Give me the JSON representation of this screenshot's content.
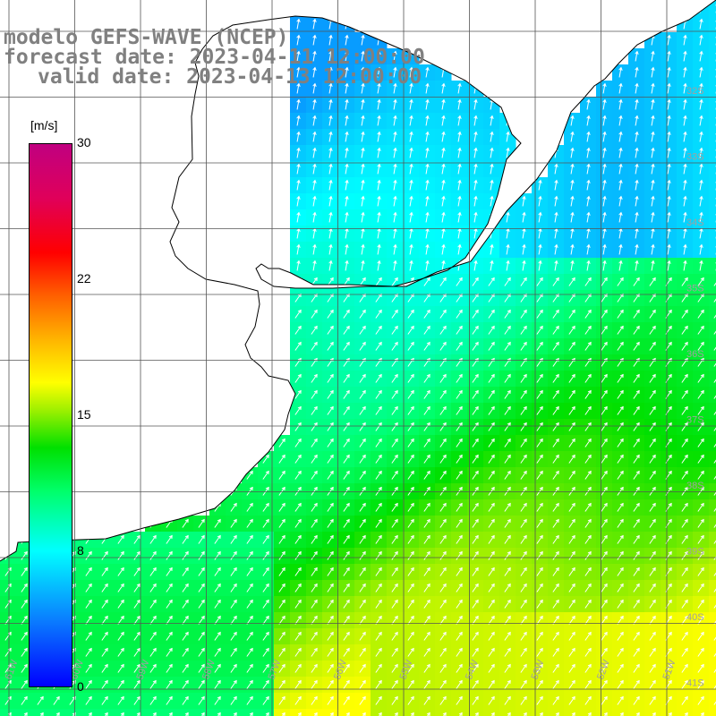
{
  "title": {
    "line1": "modelo GEFS-WAVE (NCEP)",
    "line2": "forecast date: 2023-04-11 12:00:00",
    "line3": "valid date: 2023-04-13 12:00:00"
  },
  "colorbar": {
    "unit": "[m/s]",
    "ticks": [
      "30",
      "22",
      "15",
      "8",
      "0"
    ],
    "range": [
      0,
      30
    ],
    "colors": [
      "#0000ff",
      "#00ffff",
      "#00e000",
      "#ffff00",
      "#ff0000",
      "#c00080"
    ]
  },
  "grid": {
    "lat_labels": [
      "32S",
      "33S",
      "34S",
      "35S",
      "36S",
      "37S",
      "38S",
      "39S",
      "40S",
      "41S"
    ],
    "lon_labels": [
      "61W",
      "60W",
      "59W",
      "58W",
      "57W",
      "56W",
      "55W",
      "54W",
      "53W",
      "52W",
      "51W"
    ]
  },
  "colors": {
    "land": "#ffffff",
    "coastline": "#000000",
    "gridline": "#555555",
    "arrow": "#ffffff",
    "title": "#808080"
  }
}
